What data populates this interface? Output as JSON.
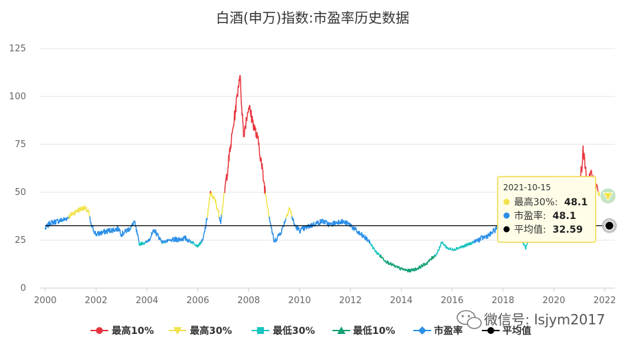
{
  "chart_data": {
    "type": "line",
    "title": "白酒(申万)指数:市盈率历史数据",
    "xlim": [
      2000,
      2022.4
    ],
    "ylim": [
      0,
      125
    ],
    "x_ticks": [
      "2000",
      "2002",
      "2004",
      "2006",
      "2008",
      "2010",
      "2012",
      "2014",
      "2016",
      "2018",
      "2020",
      "2022"
    ],
    "y_ticks": [
      "0",
      "25",
      "50",
      "75",
      "100",
      "125"
    ],
    "grid": true,
    "average": 32.59,
    "series": [
      {
        "name": "市盈率",
        "points": [
          [
            2000.0,
            31
          ],
          [
            2000.2,
            34
          ],
          [
            2000.5,
            35
          ],
          [
            2000.8,
            36
          ],
          [
            2001.0,
            38
          ],
          [
            2001.2,
            40
          ],
          [
            2001.5,
            42
          ],
          [
            2001.7,
            40
          ],
          [
            2001.8,
            33
          ],
          [
            2002.0,
            28
          ],
          [
            2002.5,
            30
          ],
          [
            2002.9,
            31
          ],
          [
            2003.0,
            28
          ],
          [
            2003.4,
            32
          ],
          [
            2003.5,
            35
          ],
          [
            2003.7,
            23
          ],
          [
            2004.0,
            24
          ],
          [
            2004.3,
            30
          ],
          [
            2004.6,
            24
          ],
          [
            2005.0,
            25
          ],
          [
            2005.5,
            26
          ],
          [
            2005.9,
            23
          ],
          [
            2006.0,
            22
          ],
          [
            2006.2,
            25
          ],
          [
            2006.35,
            35
          ],
          [
            2006.5,
            50
          ],
          [
            2006.7,
            45
          ],
          [
            2006.9,
            35
          ],
          [
            2007.1,
            55
          ],
          [
            2007.3,
            75
          ],
          [
            2007.5,
            95
          ],
          [
            2007.65,
            112
          ],
          [
            2007.8,
            80
          ],
          [
            2008.0,
            95
          ],
          [
            2008.2,
            85
          ],
          [
            2008.4,
            75
          ],
          [
            2008.6,
            55
          ],
          [
            2008.8,
            38
          ],
          [
            2009.0,
            24
          ],
          [
            2009.3,
            30
          ],
          [
            2009.6,
            42
          ],
          [
            2009.8,
            33
          ],
          [
            2010.0,
            30
          ],
          [
            2010.5,
            33
          ],
          [
            2010.9,
            35
          ],
          [
            2011.2,
            33
          ],
          [
            2011.6,
            35
          ],
          [
            2011.8,
            34
          ],
          [
            2012.0,
            33
          ],
          [
            2012.3,
            29
          ],
          [
            2012.7,
            25
          ],
          [
            2013.0,
            19
          ],
          [
            2013.4,
            14
          ],
          [
            2013.8,
            11
          ],
          [
            2014.0,
            10
          ],
          [
            2014.3,
            9
          ],
          [
            2014.6,
            10
          ],
          [
            2015.0,
            13
          ],
          [
            2015.4,
            18
          ],
          [
            2015.6,
            24
          ],
          [
            2015.8,
            21
          ],
          [
            2016.0,
            20
          ],
          [
            2016.5,
            22
          ],
          [
            2017.0,
            25
          ],
          [
            2017.5,
            28
          ],
          [
            2017.9,
            33
          ],
          [
            2018.3,
            32
          ],
          [
            2018.6,
            28
          ],
          [
            2018.9,
            21
          ],
          [
            2019.1,
            28
          ],
          [
            2019.5,
            34
          ],
          [
            2020.0,
            38
          ],
          [
            2020.5,
            44
          ],
          [
            2020.9,
            52
          ],
          [
            2021.1,
            62
          ],
          [
            2021.15,
            73
          ],
          [
            2021.3,
            55
          ],
          [
            2021.5,
            59
          ],
          [
            2021.7,
            52
          ],
          [
            2021.79,
            48.1
          ]
        ]
      },
      {
        "name": "最高10%",
        "from": 50
      },
      {
        "name": "最高30%",
        "from": 37
      },
      {
        "name": "最低30%",
        "below": 24
      },
      {
        "name": "最低10%",
        "below": 17
      },
      {
        "name": "平均值",
        "value": 32.59
      }
    ],
    "legend": [
      {
        "label": "最高10%",
        "color": "#e8343c",
        "marker": "circle"
      },
      {
        "label": "最高30%",
        "color": "#f2e34c",
        "marker": "triangle-down"
      },
      {
        "label": "最低30%",
        "color": "#19c5c0",
        "marker": "square"
      },
      {
        "label": "最低10%",
        "color": "#12a077",
        "marker": "triangle-up"
      },
      {
        "label": "市盈率",
        "color": "#2b8fe8",
        "marker": "diamond"
      },
      {
        "label": "平均值",
        "color": "#000000",
        "marker": "circle"
      }
    ],
    "legend_position": "bottom",
    "tooltip": {
      "date": "2021-10-15",
      "rows": [
        {
          "label": "最高30%:",
          "value": "48.1",
          "color": "#f2e34c"
        },
        {
          "label": "市盈率:",
          "value": "48.1",
          "color": "#2b8fe8"
        },
        {
          "label": "平均值:",
          "value": "32.59",
          "color": "#000000"
        }
      ]
    }
  },
  "watermark": "微信号: lsjym2017",
  "colors": {
    "top10": "#e8343c",
    "top30": "#f2e34c",
    "low30": "#19c5c0",
    "low10": "#12a077",
    "pe": "#2b8fe8",
    "avg": "#000000"
  }
}
